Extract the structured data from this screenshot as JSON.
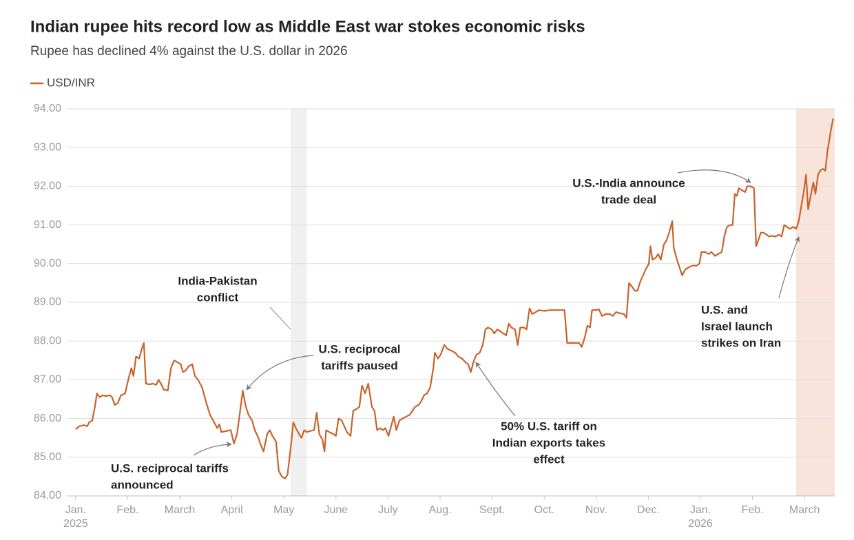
{
  "chart_data": {
    "type": "line",
    "title": "Indian rupee hits record low as Middle East war stokes economic risks",
    "subtitle": "Rupee has declined 4% against the U.S. dollar in 2026",
    "x": [
      0,
      0.07,
      0.16,
      0.22,
      0.26,
      0.32,
      0.37,
      0.41,
      0.46,
      0.52,
      0.58,
      0.66,
      0.7,
      0.75,
      0.81,
      0.87,
      0.95,
      1.01,
      1.07,
      1.11,
      1.16,
      1.22,
      1.27,
      1.31,
      1.35,
      1.42,
      1.48,
      1.55,
      1.59,
      1.64,
      1.69,
      1.77,
      1.83,
      1.89,
      1.96,
      2.02,
      2.06,
      2.12,
      2.17,
      2.24,
      2.29,
      2.35,
      2.43,
      2.51,
      2.58,
      2.66,
      2.72,
      2.76,
      2.8,
      2.88,
      2.98,
      3.04,
      3.1,
      3.16,
      3.21,
      3.27,
      3.32,
      3.39,
      3.44,
      3.51,
      3.56,
      3.61,
      3.68,
      3.73,
      3.78,
      3.85,
      3.9,
      3.96,
      4.02,
      4.07,
      4.14,
      4.18,
      4.23,
      4.29,
      4.34,
      4.39,
      4.44,
      4.51,
      4.58,
      4.63,
      4.68,
      4.74,
      4.78,
      4.81,
      4.87,
      4.95,
      5.0,
      5.05,
      5.11,
      5.16,
      5.21,
      5.28,
      5.33,
      5.4,
      5.45,
      5.5,
      5.56,
      5.62,
      5.69,
      5.74,
      5.79,
      5.85,
      5.9,
      5.95,
      6.01,
      6.06,
      6.11,
      6.16,
      6.22,
      6.28,
      6.35,
      6.42,
      6.47,
      6.52,
      6.59,
      6.64,
      6.69,
      6.75,
      6.81,
      6.87,
      6.9,
      6.96,
      7.01,
      7.08,
      7.14,
      7.22,
      7.29,
      7.35,
      7.42,
      7.49,
      7.54,
      7.59,
      7.65,
      7.7,
      7.76,
      7.82,
      7.87,
      7.92,
      7.99,
      8.04,
      8.1,
      8.16,
      8.21,
      8.27,
      8.32,
      8.37,
      8.44,
      8.49,
      8.54,
      8.61,
      8.66,
      8.72,
      8.77,
      8.84,
      8.9,
      9.0,
      9.13,
      9.26,
      9.39,
      9.44,
      9.52,
      9.6,
      9.67,
      9.72,
      9.78,
      9.83,
      9.88,
      9.92,
      9.99,
      10.05,
      10.11,
      10.19,
      10.26,
      10.32,
      10.38,
      10.45,
      10.53,
      10.58,
      10.63,
      10.69,
      10.74,
      10.79,
      10.85,
      10.9,
      10.95,
      11.01,
      11.04,
      11.08,
      11.14,
      11.19,
      11.24,
      11.3,
      11.35,
      11.4,
      11.46,
      11.49,
      11.55,
      11.6,
      11.65,
      11.71,
      11.77,
      11.85,
      11.93,
      11.98,
      12.02,
      12.09,
      12.16,
      12.21,
      12.28,
      12.34,
      12.41,
      12.46,
      12.51,
      12.57,
      12.62,
      12.66,
      12.7,
      12.74,
      12.79,
      12.86,
      12.9,
      12.96,
      13.03,
      13.07,
      13.11,
      13.16,
      13.21,
      13.27,
      13.32,
      13.37,
      13.44,
      13.51,
      13.56,
      13.61,
      13.66,
      13.72,
      13.78,
      13.84,
      13.89,
      13.94,
      13.99,
      14.03,
      14.07,
      14.11,
      14.17,
      14.21,
      14.26,
      14.3,
      14.35,
      14.4,
      14.44,
      14.5,
      14.55
    ],
    "series": [
      {
        "name": "USD/INR",
        "color": "#c9622b",
        "values": [
          85.72,
          85.8,
          85.83,
          85.8,
          85.9,
          85.95,
          86.3,
          86.65,
          86.55,
          86.6,
          86.58,
          86.6,
          86.55,
          86.35,
          86.4,
          86.6,
          86.65,
          87.0,
          87.3,
          87.1,
          87.6,
          87.55,
          87.8,
          87.95,
          86.9,
          86.88,
          86.9,
          86.87,
          87.0,
          86.9,
          86.75,
          86.72,
          87.3,
          87.5,
          87.45,
          87.4,
          87.2,
          87.25,
          87.35,
          87.4,
          87.1,
          87.0,
          86.8,
          86.4,
          86.1,
          85.9,
          85.75,
          85.85,
          85.65,
          85.67,
          85.7,
          85.35,
          85.6,
          86.2,
          86.72,
          86.3,
          86.1,
          85.95,
          85.7,
          85.5,
          85.3,
          85.15,
          85.6,
          85.7,
          85.55,
          85.4,
          84.65,
          84.5,
          84.45,
          84.55,
          85.35,
          85.9,
          85.75,
          85.6,
          85.5,
          85.7,
          85.65,
          85.68,
          85.7,
          86.15,
          85.6,
          85.45,
          85.15,
          85.7,
          85.65,
          85.6,
          85.55,
          86.0,
          85.95,
          85.8,
          85.65,
          85.55,
          86.2,
          86.25,
          86.3,
          86.85,
          86.65,
          86.9,
          86.3,
          86.2,
          85.7,
          85.75,
          85.7,
          85.75,
          85.55,
          85.8,
          86.05,
          85.7,
          85.95,
          86.0,
          86.05,
          86.1,
          86.2,
          86.3,
          86.35,
          86.45,
          86.6,
          86.65,
          86.8,
          87.3,
          87.7,
          87.55,
          87.65,
          87.9,
          87.8,
          87.75,
          87.7,
          87.6,
          87.55,
          87.45,
          87.4,
          87.2,
          87.5,
          87.65,
          87.7,
          87.9,
          88.3,
          88.35,
          88.3,
          88.2,
          88.3,
          88.25,
          88.2,
          88.15,
          88.45,
          88.35,
          88.3,
          87.9,
          88.35,
          88.35,
          88.3,
          88.85,
          88.7,
          88.75,
          88.8,
          88.78,
          88.8,
          88.8,
          88.8,
          87.95,
          87.95,
          87.95,
          87.95,
          87.85,
          88.1,
          88.4,
          88.35,
          88.8,
          88.8,
          88.82,
          88.65,
          88.7,
          88.7,
          88.65,
          88.75,
          88.72,
          88.7,
          88.6,
          89.5,
          89.4,
          89.3,
          89.3,
          89.55,
          89.7,
          89.85,
          90.0,
          90.45,
          90.1,
          90.15,
          90.25,
          90.1,
          90.5,
          90.6,
          90.8,
          91.1,
          90.4,
          90.1,
          89.9,
          89.7,
          89.85,
          89.9,
          89.95,
          89.95,
          90.0,
          90.3,
          90.3,
          90.25,
          90.3,
          90.2,
          90.25,
          90.3,
          90.7,
          90.95,
          91.0,
          91.0,
          91.8,
          91.75,
          91.95,
          91.9,
          91.85,
          92.0,
          92.0,
          91.95,
          90.45,
          90.6,
          90.8,
          90.8,
          90.75,
          90.7,
          90.72,
          90.7,
          90.75,
          90.7,
          91.0,
          90.95,
          90.9,
          90.95,
          90.9,
          91.1,
          91.5,
          91.9,
          92.3,
          91.4,
          91.7,
          92.1,
          91.8,
          92.3,
          92.4,
          92.45,
          92.4,
          92.9,
          93.4,
          93.75
        ]
      }
    ],
    "xlim": [
      -0.17,
      14.58
    ],
    "xticks": [
      {
        "value": 0,
        "label": "Jan."
      },
      {
        "value": 1,
        "label": "Feb."
      },
      {
        "value": 2,
        "label": "March"
      },
      {
        "value": 3,
        "label": "April"
      },
      {
        "value": 4,
        "label": "May"
      },
      {
        "value": 5,
        "label": "June"
      },
      {
        "value": 6,
        "label": "July"
      },
      {
        "value": 7,
        "label": "Aug."
      },
      {
        "value": 8,
        "label": "Sept."
      },
      {
        "value": 9,
        "label": "Oct."
      },
      {
        "value": 10,
        "label": "Nov."
      },
      {
        "value": 11,
        "label": "Dec."
      },
      {
        "value": 12,
        "label": "Jan."
      },
      {
        "value": 13,
        "label": "Feb."
      },
      {
        "value": 14,
        "label": "March"
      }
    ],
    "xtick_years": [
      {
        "value": 0,
        "label": "2025"
      },
      {
        "value": 12,
        "label": "2026"
      }
    ],
    "ylim": [
      84,
      94
    ],
    "yticks": [
      {
        "value": 84,
        "label": "84.00"
      },
      {
        "value": 85,
        "label": "85.00"
      },
      {
        "value": 86,
        "label": "86.00"
      },
      {
        "value": 87,
        "label": "87.00"
      },
      {
        "value": 88,
        "label": "88.00"
      },
      {
        "value": 89,
        "label": "89.00"
      },
      {
        "value": 90,
        "label": "90.00"
      },
      {
        "value": 91,
        "label": "91.00"
      },
      {
        "value": 92,
        "label": "92.00"
      },
      {
        "value": 93,
        "label": "93.00"
      },
      {
        "value": 94,
        "label": "94.00"
      }
    ],
    "grid": true,
    "legend": "top-left",
    "shaded_ranges": [
      {
        "range": [
          4.13,
          4.44
        ],
        "color": "#f0f0f0"
      },
      {
        "range": [
          13.84,
          14.58
        ],
        "color": "#f9e4dc"
      }
    ],
    "annotations": [
      {
        "lines": [
          "India-Pakistan",
          "conflict"
        ]
      },
      {
        "lines": [
          "U.S. reciprocal",
          "tariffs paused"
        ]
      },
      {
        "lines": [
          "U.S. reciprocal tariffs",
          "announced"
        ]
      },
      {
        "lines": [
          "50% U.S. tariff on",
          "Indian exports takes",
          "effect"
        ]
      },
      {
        "lines": [
          "U.S.-India announce",
          "trade deal"
        ]
      },
      {
        "lines": [
          "U.S. and",
          "Israel launch",
          "strikes on Iran"
        ]
      }
    ]
  }
}
